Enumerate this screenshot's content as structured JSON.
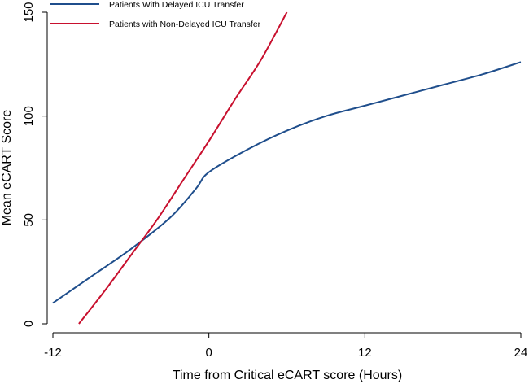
{
  "chart_data": {
    "type": "line",
    "xlabel": "Time from Critical eCART score (Hours)",
    "ylabel": "Mean eCART Score",
    "xlim": [
      -12,
      24
    ],
    "ylim": [
      0,
      150
    ],
    "xticks": [
      -12,
      0,
      12,
      24
    ],
    "yticks": [
      0,
      50,
      100,
      150
    ],
    "grid": false,
    "legend_position": "top-left",
    "series": [
      {
        "name": "Patients With Delayed ICU Transfer",
        "color": "#1f4e8c",
        "x": [
          -12,
          -9,
          -6,
          -3,
          -1,
          0,
          3,
          6,
          9,
          12,
          15,
          18,
          21,
          24
        ],
        "y": [
          10,
          23,
          36,
          51,
          65,
          73,
          84,
          93,
          100,
          105,
          110,
          115,
          120,
          126
        ]
      },
      {
        "name": "Patients with Non-Delayed ICU Transfer",
        "color": "#c8102e",
        "x": [
          -10,
          -8,
          -6,
          -4,
          -2,
          0,
          2,
          4,
          6
        ],
        "y": [
          0,
          16,
          33,
          50,
          69,
          88,
          108,
          127,
          150
        ]
      }
    ]
  }
}
